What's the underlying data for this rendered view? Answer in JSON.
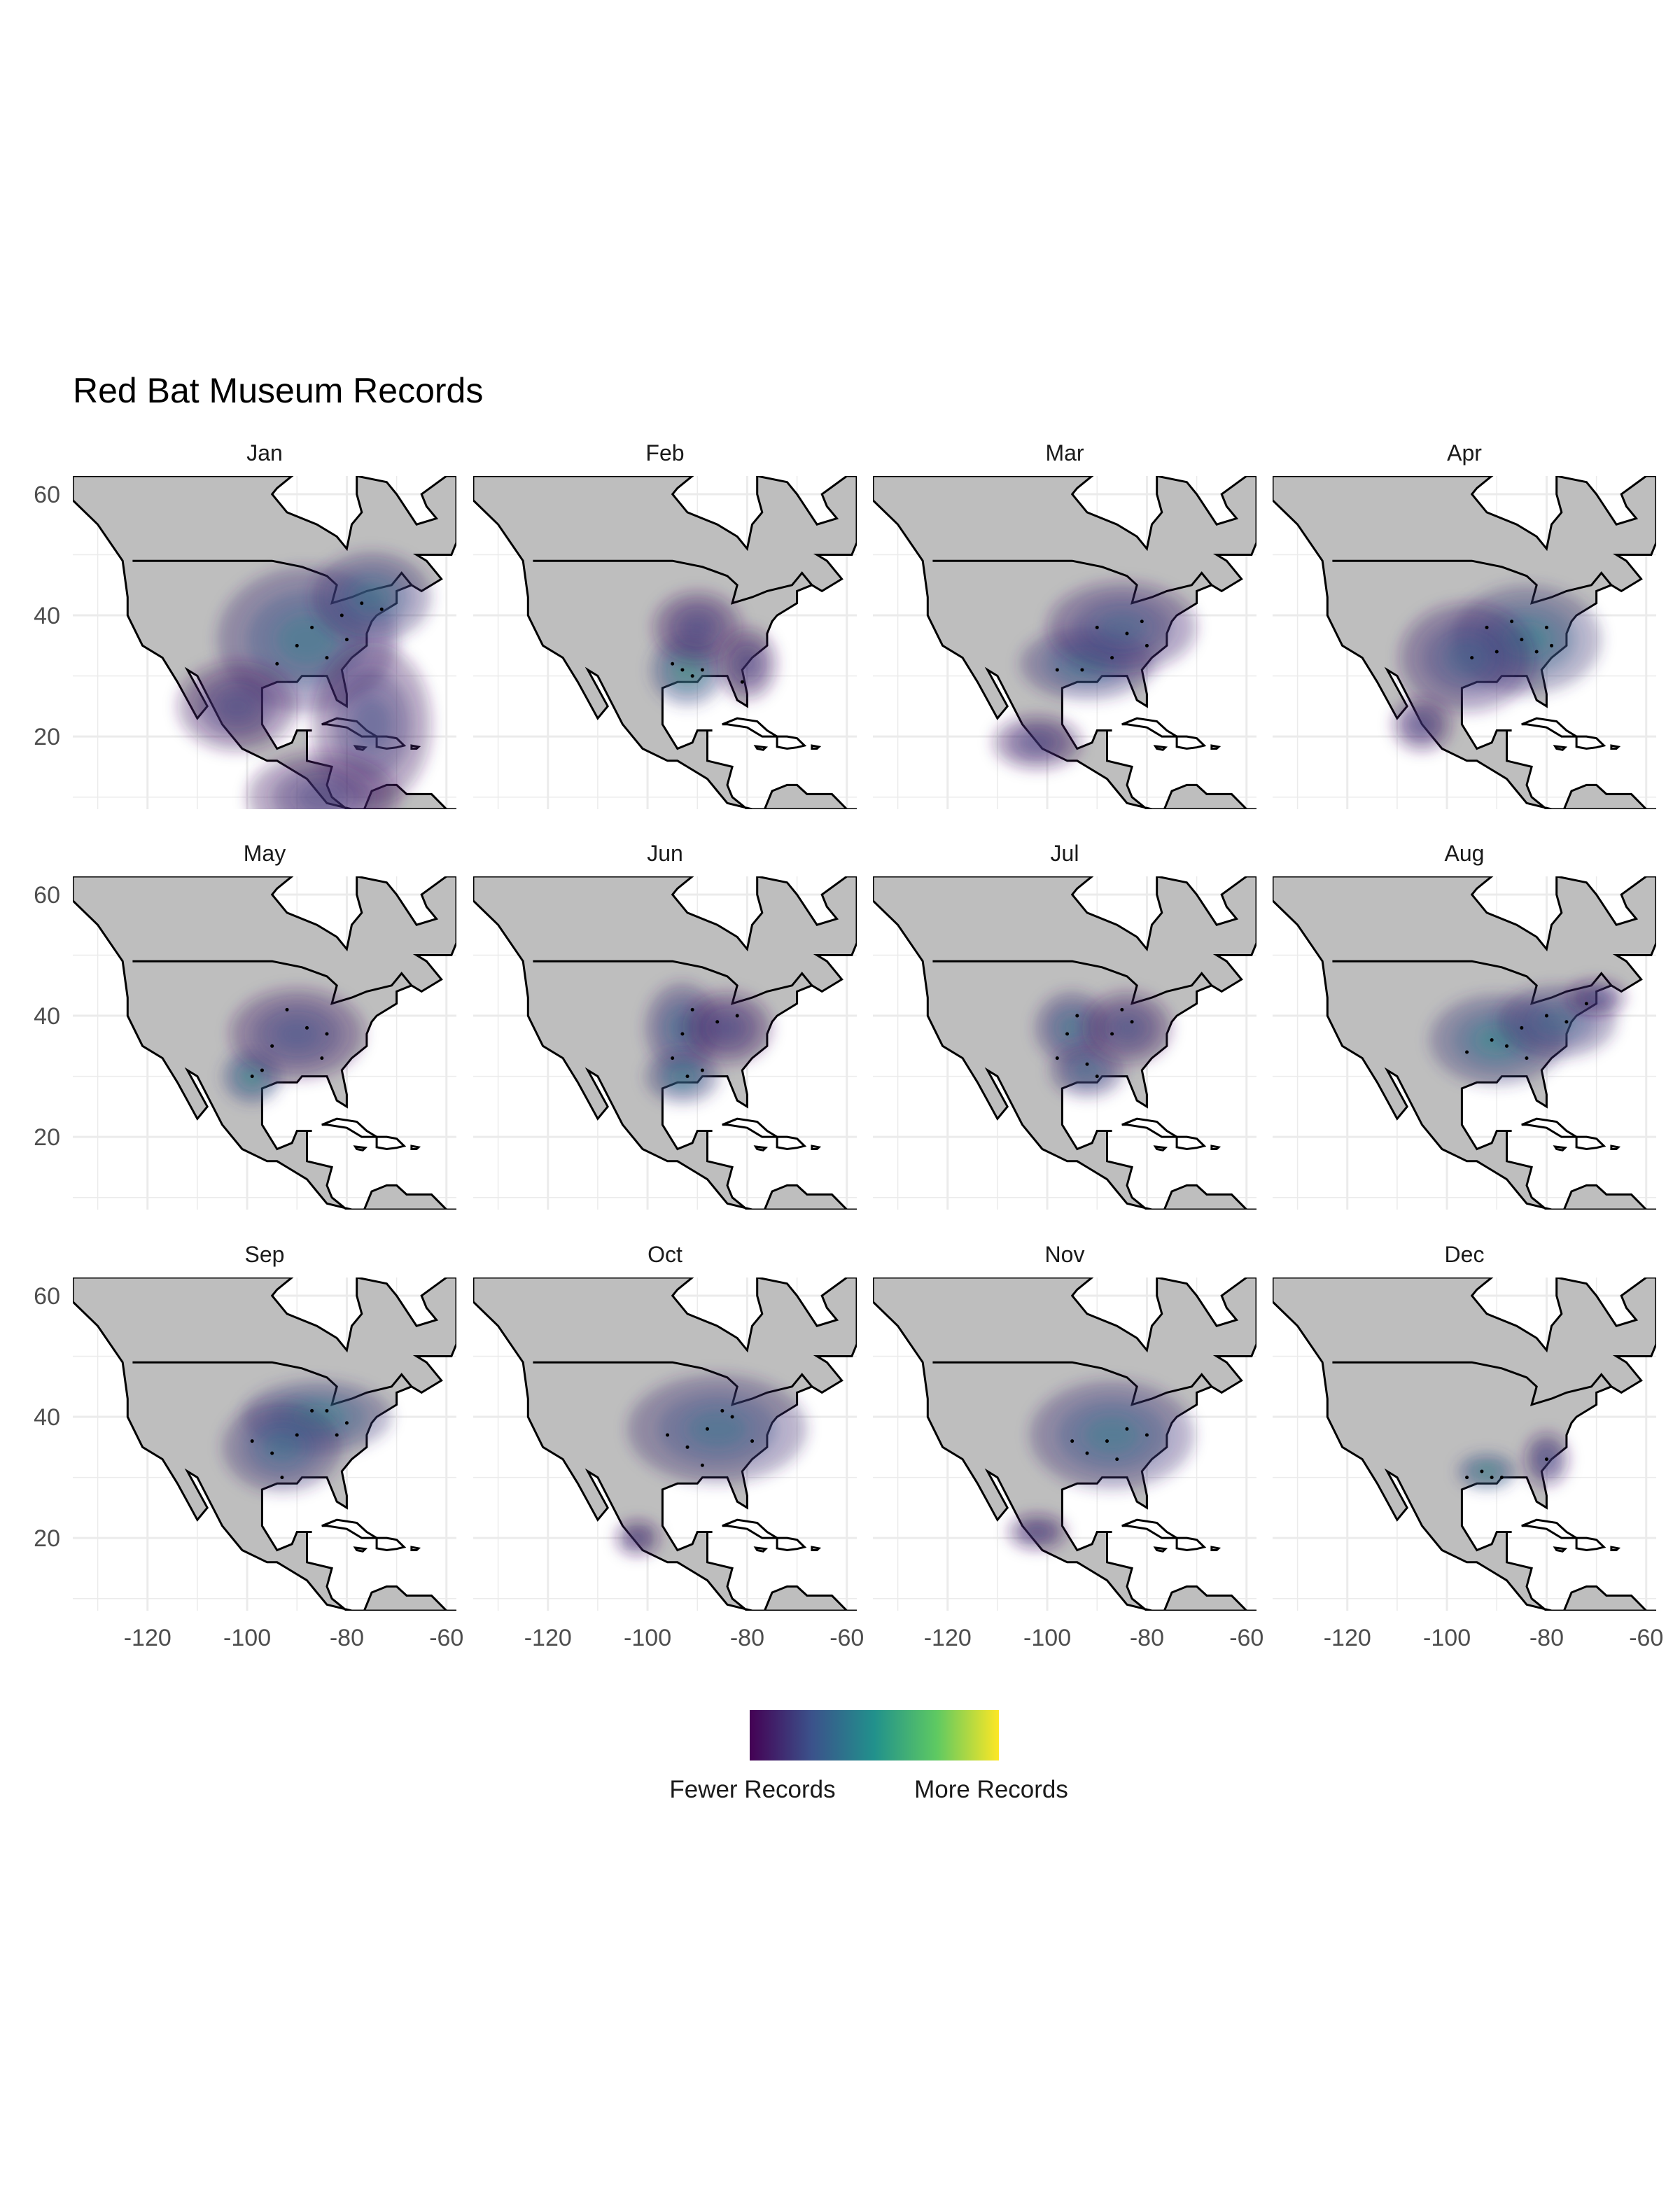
{
  "chart_data": {
    "type": "heatmap",
    "title": "Red Bat Museum Records",
    "xlabel": "",
    "ylabel": "",
    "xlim": [
      -135,
      -58
    ],
    "ylim": [
      8,
      63
    ],
    "x_ticks": [
      -120,
      -100,
      -80,
      -60
    ],
    "x_tick_labels": [
      "-120",
      "-100",
      "-80",
      "-60"
    ],
    "y_ticks": [
      20,
      40,
      60
    ],
    "y_tick_labels": [
      "20",
      "40",
      "60"
    ],
    "grid": true,
    "legend_placement": "bottom",
    "legend": {
      "low_label": "Fewer Records",
      "high_label": "More Records",
      "colormap": [
        "#440154",
        "#3b528b",
        "#21918c",
        "#5ec962",
        "#fde725"
      ]
    },
    "colors": {
      "land": "#bebebe",
      "ocean": "#ffffff",
      "outline": "#000000",
      "grid": "#ebebeb",
      "density_low": "#6a3d8f",
      "density_high": "#fde725"
    },
    "panels": [
      {
        "month": "Jan",
        "density": [
          {
            "lon": -88,
            "lat": 36,
            "slon": 12,
            "slat": 8,
            "level": 0.75
          },
          {
            "lon": -75,
            "lat": 43,
            "slon": 8,
            "slat": 5,
            "level": 0.7
          },
          {
            "lon": -75,
            "lat": 22,
            "slon": 8,
            "slat": 9,
            "level": 0.4
          },
          {
            "lon": -102,
            "lat": 25,
            "slon": 8,
            "slat": 5,
            "level": 0.35
          },
          {
            "lon": -85,
            "lat": 10,
            "slon": 10,
            "slat": 5,
            "level": 0.3
          }
        ],
        "points": [
          [
            -90,
            35
          ],
          [
            -87,
            38
          ],
          [
            -81,
            40
          ],
          [
            -77,
            42
          ],
          [
            -73,
            41
          ],
          [
            -94,
            32
          ],
          [
            -84,
            33
          ],
          [
            -80,
            36
          ]
        ]
      },
      {
        "month": "Feb",
        "density": [
          {
            "lon": -92,
            "lat": 31,
            "slon": 5,
            "slat": 4,
            "level": 1.0
          },
          {
            "lon": -90,
            "lat": 38,
            "slon": 6,
            "slat": 4,
            "level": 0.35
          },
          {
            "lon": -80,
            "lat": 32,
            "slon": 4,
            "slat": 4,
            "level": 0.3
          }
        ],
        "points": [
          [
            -93,
            31
          ],
          [
            -91,
            30
          ],
          [
            -89,
            31
          ],
          [
            -95,
            32
          ],
          [
            -81,
            29
          ]
        ]
      },
      {
        "month": "Mar",
        "density": [
          {
            "lon": -92,
            "lat": 32,
            "slon": 9,
            "slat": 4,
            "level": 0.75
          },
          {
            "lon": -85,
            "lat": 38,
            "slon": 10,
            "slat": 5,
            "level": 0.55
          },
          {
            "lon": -102,
            "lat": 19,
            "slon": 6,
            "slat": 3,
            "level": 0.35
          }
        ],
        "points": [
          [
            -93,
            31
          ],
          [
            -87,
            33
          ],
          [
            -84,
            37
          ],
          [
            -80,
            35
          ],
          [
            -90,
            38
          ],
          [
            -98,
            31
          ],
          [
            -81,
            39
          ]
        ]
      },
      {
        "month": "Apr",
        "density": [
          {
            "lon": -84,
            "lat": 36,
            "slon": 10,
            "slat": 6,
            "level": 0.8
          },
          {
            "lon": -96,
            "lat": 33,
            "slon": 9,
            "slat": 6,
            "level": 0.55
          },
          {
            "lon": -105,
            "lat": 22,
            "slon": 4,
            "slat": 3,
            "level": 0.35
          }
        ],
        "points": [
          [
            -85,
            36
          ],
          [
            -80,
            38
          ],
          [
            -90,
            34
          ],
          [
            -87,
            39
          ],
          [
            -95,
            33
          ],
          [
            -79,
            35
          ],
          [
            -82,
            34
          ],
          [
            -92,
            38
          ]
        ]
      },
      {
        "month": "May",
        "density": [
          {
            "lon": -99,
            "lat": 30,
            "slon": 4,
            "slat": 3,
            "level": 0.95
          },
          {
            "lon": -90,
            "lat": 37,
            "slon": 9,
            "slat": 5,
            "level": 0.45
          }
        ],
        "points": [
          [
            -99,
            30
          ],
          [
            -97,
            31
          ],
          [
            -95,
            35
          ],
          [
            -88,
            38
          ],
          [
            -85,
            33
          ],
          [
            -92,
            41
          ],
          [
            -84,
            37
          ]
        ]
      },
      {
        "month": "Jun",
        "density": [
          {
            "lon": -93,
            "lat": 38,
            "slon": 5,
            "slat": 5,
            "level": 0.65
          },
          {
            "lon": -93,
            "lat": 30,
            "slon": 5,
            "slat": 3,
            "level": 0.8
          },
          {
            "lon": -84,
            "lat": 38,
            "slon": 6,
            "slat": 4,
            "level": 0.35
          }
        ],
        "points": [
          [
            -93,
            37
          ],
          [
            -91,
            41
          ],
          [
            -95,
            33
          ],
          [
            -92,
            30
          ],
          [
            -89,
            31
          ],
          [
            -86,
            39
          ],
          [
            -82,
            40
          ]
        ]
      },
      {
        "month": "Jul",
        "density": [
          {
            "lon": -95,
            "lat": 38,
            "slon": 5,
            "slat": 4,
            "level": 0.7
          },
          {
            "lon": -92,
            "lat": 31,
            "slon": 5,
            "slat": 3,
            "level": 0.6
          },
          {
            "lon": -84,
            "lat": 38,
            "slon": 6,
            "slat": 4,
            "level": 0.4
          }
        ],
        "points": [
          [
            -96,
            37
          ],
          [
            -94,
            40
          ],
          [
            -92,
            32
          ],
          [
            -90,
            30
          ],
          [
            -87,
            37
          ],
          [
            -83,
            39
          ],
          [
            -85,
            41
          ],
          [
            -98,
            33
          ]
        ]
      },
      {
        "month": "Aug",
        "density": [
          {
            "lon": -90,
            "lat": 36,
            "slon": 9,
            "slat": 5,
            "level": 0.85
          },
          {
            "lon": -78,
            "lat": 39,
            "slon": 8,
            "slat": 4,
            "level": 0.6
          },
          {
            "lon": -70,
            "lat": 43,
            "slon": 4,
            "slat": 2,
            "level": 0.4
          }
        ],
        "points": [
          [
            -91,
            36
          ],
          [
            -88,
            35
          ],
          [
            -85,
            38
          ],
          [
            -80,
            40
          ],
          [
            -96,
            34
          ],
          [
            -76,
            39
          ],
          [
            -72,
            42
          ],
          [
            -84,
            33
          ]
        ]
      },
      {
        "month": "Sep",
        "density": [
          {
            "lon": -86,
            "lat": 40,
            "slon": 10,
            "slat": 4,
            "level": 0.85
          },
          {
            "lon": -93,
            "lat": 35,
            "slon": 8,
            "slat": 5,
            "level": 0.65
          }
        ],
        "points": [
          [
            -87,
            41
          ],
          [
            -84,
            41
          ],
          [
            -90,
            37
          ],
          [
            -95,
            34
          ],
          [
            -80,
            39
          ],
          [
            -93,
            30
          ],
          [
            -99,
            36
          ],
          [
            -82,
            37
          ]
        ]
      },
      {
        "month": "Oct",
        "density": [
          {
            "lon": -86,
            "lat": 38,
            "slon": 12,
            "slat": 6,
            "level": 0.65
          },
          {
            "lon": -102,
            "lat": 20,
            "slon": 3,
            "slat": 2,
            "level": 0.3
          }
        ],
        "points": [
          [
            -88,
            38
          ],
          [
            -83,
            40
          ],
          [
            -92,
            35
          ],
          [
            -96,
            37
          ],
          [
            -79,
            36
          ],
          [
            -89,
            32
          ],
          [
            -85,
            41
          ]
        ]
      },
      {
        "month": "Nov",
        "density": [
          {
            "lon": -87,
            "lat": 37,
            "slon": 11,
            "slat": 6,
            "level": 0.75
          },
          {
            "lon": -102,
            "lat": 21,
            "slon": 4,
            "slat": 2,
            "level": 0.35
          }
        ],
        "points": [
          [
            -88,
            36
          ],
          [
            -84,
            38
          ],
          [
            -92,
            34
          ],
          [
            -80,
            37
          ],
          [
            -86,
            33
          ],
          [
            -95,
            36
          ]
        ]
      },
      {
        "month": "Dec",
        "density": [
          {
            "lon": -92,
            "lat": 31,
            "slon": 4,
            "slat": 2,
            "level": 1.0
          },
          {
            "lon": -80,
            "lat": 33,
            "slon": 3,
            "slat": 3,
            "level": 0.45
          }
        ],
        "points": [
          [
            -93,
            31
          ],
          [
            -91,
            30
          ],
          [
            -89,
            30
          ],
          [
            -80,
            33
          ],
          [
            -96,
            30
          ]
        ]
      }
    ]
  }
}
